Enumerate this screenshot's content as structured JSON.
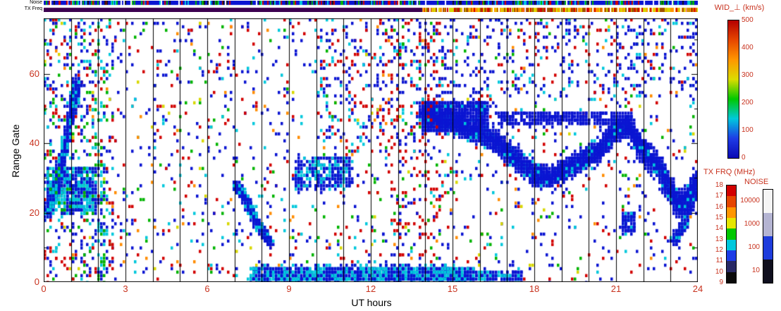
{
  "chart_data": {
    "type": "heatmap",
    "title": "WID_⊥ (km/s)",
    "xlabel": "UT hours",
    "ylabel": "Range Gate",
    "xlim": [
      0,
      24
    ],
    "ylim": [
      0,
      76
    ],
    "x_ticks": [
      0,
      3,
      6,
      9,
      12,
      15,
      18,
      21,
      24
    ],
    "y_ticks": [
      0,
      20,
      40,
      60
    ],
    "y_minor_step": 10,
    "grid": "vertical black line at every UT hour",
    "legend_position": "right",
    "tick_text_color": "#c8321e",
    "axis_text_color": "#000000",
    "palette": {
      "blue": "#0a14d2",
      "cyan": "#00c8dc",
      "green": "#00b400",
      "yellow": "#d8d800",
      "orange": "#ff8c00",
      "red": "#d20000",
      "white": "#ffffff",
      "black": "#141414",
      "darkorange": "#a05000",
      "purple": "#3c0050"
    },
    "colorbar": {
      "title": "WID_⊥ (km/s)",
      "unit": "km/s",
      "ticks": [
        500,
        400,
        300,
        200,
        100,
        0
      ],
      "colors_top_to_bottom": [
        "#b40000",
        "#e64600",
        "#ff9600",
        "#dcdc00",
        "#00c800",
        "#00c8dc",
        "#1e3ce6",
        "#0a0ab4"
      ]
    },
    "tx_frq_scale": {
      "title": "TX FRQ (MHz)",
      "ticks": [
        18,
        17,
        16,
        15,
        14,
        13,
        12,
        11,
        10,
        9
      ],
      "colors_top_to_bottom": [
        "#d20000",
        "#e64600",
        "#ff9600",
        "#e6e600",
        "#00c800",
        "#00c8dc",
        "#1e3ce6",
        "#282864",
        "#0a0a0a"
      ]
    },
    "noise_scale": {
      "title": "NOISE",
      "ticks": [
        10000,
        1000,
        100,
        10
      ],
      "colors_top_to_bottom": [
        "#f5f5f5",
        "#b4b4d2",
        "#1e3cdc",
        "#0f0f1e"
      ]
    },
    "strips": {
      "noise_label": "Noise",
      "tx_freq_label": "TX Freq",
      "noise_base": "blue",
      "noise_speck_weights": {
        "green": 0.3,
        "red": 0.2,
        "cyan": 0.2,
        "white": 0.1,
        "black": 0.2
      },
      "noise_speck_count": 240,
      "tx_dark_until_hour": 13.9,
      "tx_dark_color": "#3c0050",
      "tx_base_after": "#ff9600",
      "tx_speck_weights": {
        "yellow": 0.35,
        "red": 0.25,
        "darkorange": 0.25,
        "white": 0.15
      },
      "tx_speck_count": 300
    },
    "regions": [
      {
        "id": "background-speckle",
        "shape": "cluster",
        "x": [
          0,
          24
        ],
        "y": [
          0,
          76
        ],
        "count": 1700,
        "palette": {
          "blue": 0.42,
          "red": 0.24,
          "cyan": 0.12,
          "green": 0.11,
          "yellow": 0.05,
          "orange": 0.06
        }
      },
      {
        "id": "left-speckle-boost",
        "shape": "cluster",
        "x": [
          0,
          2.6
        ],
        "y": [
          0,
          76
        ],
        "count": 420,
        "palette": {
          "blue": 0.35,
          "red": 0.2,
          "cyan": 0.25,
          "green": 0.2
        }
      },
      {
        "id": "dawn-diagonal",
        "shape": "band",
        "pts": [
          [
            0.15,
            20
          ],
          [
            0.45,
            28
          ],
          [
            0.75,
            38
          ],
          [
            1.05,
            50
          ],
          [
            1.25,
            57
          ]
        ],
        "hw": 4.5,
        "count": 850,
        "palette": {
          "blue": 0.8,
          "cyan": 0.2
        }
      },
      {
        "id": "dawn-blob",
        "shape": "cluster",
        "x": [
          0.1,
          1.9
        ],
        "y": [
          20,
          33
        ],
        "count": 600,
        "palette": {
          "blue": 0.5,
          "cyan": 0.4,
          "green": 0.1
        }
      },
      {
        "id": "diagonal-streak-8ut",
        "shape": "band",
        "pts": [
          [
            7.05,
            28
          ],
          [
            7.45,
            23
          ],
          [
            7.85,
            17
          ],
          [
            8.3,
            11
          ]
        ],
        "hw": 2,
        "count": 800,
        "palette": {
          "blue": 0.72,
          "cyan": 0.28
        }
      },
      {
        "id": "mid-blob-10ut",
        "shape": "cluster",
        "x": [
          9.25,
          11.3
        ],
        "y": [
          27,
          36
        ],
        "count": 320,
        "palette": {
          "blue": 0.7,
          "cyan": 0.3
        }
      },
      {
        "id": "low-gate-band",
        "shape": "cluster",
        "x": [
          7.6,
          15.8
        ],
        "y": [
          0,
          4.5
        ],
        "count": 1400,
        "palette": {
          "blue": 0.55,
          "cyan": 0.45
        }
      },
      {
        "id": "low-gate-band-tail",
        "shape": "cluster",
        "x": [
          15.8,
          17.6
        ],
        "y": [
          0,
          3
        ],
        "count": 130,
        "palette": {
          "blue": 0.6,
          "cyan": 0.4
        }
      },
      {
        "id": "main-dense-band",
        "shape": "band",
        "pts": [
          [
            13.85,
            49
          ],
          [
            14.4,
            47
          ],
          [
            15,
            46
          ],
          [
            15.6,
            44
          ],
          [
            16.2,
            42
          ],
          [
            16.8,
            39
          ],
          [
            17.4,
            35
          ],
          [
            18,
            31
          ],
          [
            18.6,
            30
          ],
          [
            19.2,
            33
          ],
          [
            19.8,
            35
          ],
          [
            20.4,
            38
          ],
          [
            21,
            44
          ],
          [
            21.4,
            45
          ],
          [
            21.8,
            40
          ],
          [
            22.2,
            36
          ],
          [
            22.6,
            33
          ],
          [
            23,
            26
          ],
          [
            23.3,
            22
          ],
          [
            23.6,
            24
          ],
          [
            24,
            30
          ]
        ],
        "hw": 6.5,
        "count": 5200,
        "palette": {
          "blue": 0.92,
          "cyan": 0.08
        }
      },
      {
        "id": "band-start-blob",
        "shape": "cluster",
        "x": [
          13.9,
          16.3
        ],
        "y": [
          43,
          52
        ],
        "count": 850,
        "palette": {
          "blue": 0.93,
          "cyan": 0.07
        }
      },
      {
        "id": "band-top-dashes",
        "shape": "cluster",
        "x": [
          16.6,
          21.6
        ],
        "y": [
          45,
          49
        ],
        "count": 380,
        "palette": {
          "blue": 1.0
        }
      },
      {
        "id": "right-edge-streak",
        "shape": "band",
        "pts": [
          [
            23.1,
            11
          ],
          [
            23.5,
            17
          ],
          [
            23.95,
            27
          ]
        ],
        "hw": 2.2,
        "count": 300,
        "palette": {
          "blue": 0.8,
          "cyan": 0.2
        }
      },
      {
        "id": "upper-right-dashes",
        "shape": "cluster",
        "x": [
          14,
          24
        ],
        "y": [
          53,
          76
        ],
        "count": 340,
        "palette": {
          "blue": 0.78,
          "red": 0.12,
          "cyan": 0.1
        }
      },
      {
        "id": "upper-mid-speckle",
        "shape": "cluster",
        "x": [
          10,
          14.2
        ],
        "y": [
          40,
          76
        ],
        "count": 240,
        "palette": {
          "blue": 0.45,
          "red": 0.35,
          "cyan": 0.2
        }
      },
      {
        "id": "red-column-13ut",
        "shape": "cluster",
        "x": [
          12.6,
          14.6
        ],
        "y": [
          5,
          76
        ],
        "count": 160,
        "palette": {
          "red": 0.55,
          "blue": 0.25,
          "green": 0.1,
          "cyan": 0.1
        }
      },
      {
        "id": "green-column-2ut",
        "shape": "cluster",
        "x": [
          2.05,
          2.25
        ],
        "y": [
          0,
          40
        ],
        "count": 60,
        "palette": {
          "green": 0.4,
          "cyan": 0.4,
          "blue": 0.2
        }
      },
      {
        "id": "small-blob-21ut",
        "shape": "cluster",
        "x": [
          21.2,
          21.7
        ],
        "y": [
          14,
          20
        ],
        "count": 90,
        "palette": {
          "blue": 0.9,
          "cyan": 0.1
        }
      }
    ]
  }
}
